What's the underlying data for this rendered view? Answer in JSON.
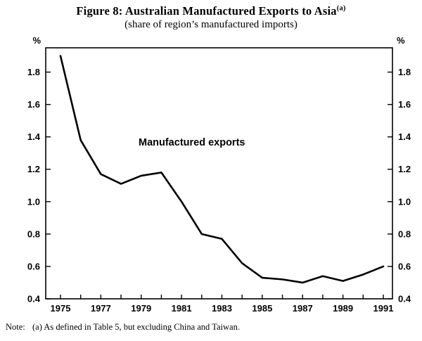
{
  "header": {
    "title_prefix": "Figure 8: Australian Manufactured Exports to Asia",
    "title_superscript": "(a)",
    "subtitle": "(share of region’s manufactured imports)"
  },
  "chart_data": {
    "type": "line",
    "title": "Figure 8: Australian Manufactured Exports to Asia (a)",
    "subtitle": "(share of region's manufactured imports)",
    "x": [
      1975,
      1976,
      1977,
      1978,
      1979,
      1980,
      1981,
      1982,
      1983,
      1984,
      1985,
      1986,
      1987,
      1988,
      1989,
      1990,
      1991
    ],
    "series": [
      {
        "name": "Manufactured exports",
        "values": [
          1.9,
          1.38,
          1.17,
          1.11,
          1.16,
          1.18,
          1.0,
          0.8,
          0.77,
          0.62,
          0.53,
          0.52,
          0.5,
          0.54,
          0.51,
          0.55,
          0.6
        ]
      }
    ],
    "annotation": "Manufactured exports",
    "y_axis": {
      "unit": "%",
      "ticks": [
        0.4,
        0.6,
        0.8,
        1.0,
        1.2,
        1.4,
        1.6,
        1.8
      ],
      "min": 0.4,
      "max": 1.95
    },
    "x_ticks_labeled": [
      1975,
      1977,
      1979,
      1981,
      1983,
      1985,
      1987,
      1989,
      1991
    ],
    "grid": "off",
    "legend": "none",
    "line_color": "#000000"
  },
  "note": {
    "label": "Note:",
    "text": "(a) As defined in Table 5, but excluding China and Taiwan."
  }
}
